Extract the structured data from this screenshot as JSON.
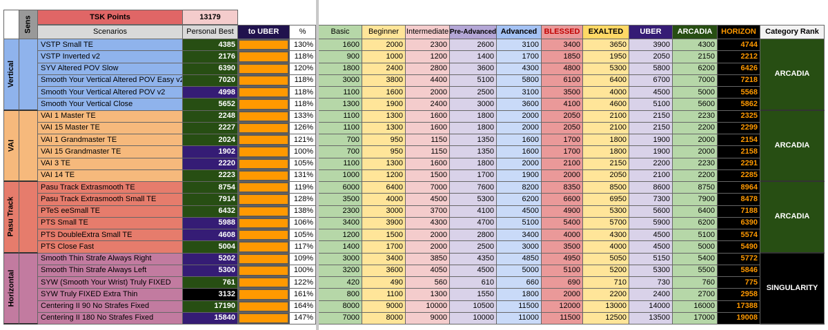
{
  "header": {
    "title": "TSK Points",
    "total": "13179",
    "sens": "Sens"
  },
  "columns": [
    "Scenarios",
    "Personal Best",
    "to UBER",
    "%",
    "Basic",
    "Beginner",
    "Intermediate",
    "Pre-Advanced",
    "Advanced",
    "BLESSED",
    "EXALTED",
    "UBER",
    "ARCADIA",
    "HORIZON",
    "Category Rank"
  ],
  "groups": [
    {
      "name": "Vertical",
      "rank": "ARCADIA",
      "color": "#8fb3ec",
      "rows": [
        {
          "scenario": "VSTP Small TE",
          "pb": 4385,
          "pb_color": "#274e13",
          "pct": {
            "value": 130,
            "label": "130%"
          },
          "thresholds": [
            1600,
            2000,
            2300,
            2600,
            3100,
            3400,
            3650,
            3900,
            4300,
            4744
          ]
        },
        {
          "scenario": "VSTP Inverted v2",
          "pb": 2176,
          "pb_color": "#274e13",
          "pct": {
            "value": 118,
            "label": "118%"
          },
          "thresholds": [
            900,
            1000,
            1200,
            1400,
            1700,
            1850,
            1950,
            2050,
            2150,
            2212
          ]
        },
        {
          "scenario": "SYV Altered POV Slow",
          "pb": 6390,
          "pb_color": "#274e13",
          "pct": {
            "value": 120,
            "label": "120%"
          },
          "thresholds": [
            1800,
            2400,
            2800,
            3600,
            4300,
            4800,
            5300,
            5800,
            6200,
            6426
          ]
        },
        {
          "scenario": "Smooth Your Vertical Altered POV Easy v2",
          "pb": 7020,
          "pb_color": "#274e13",
          "pct": {
            "value": 118,
            "label": "118%"
          },
          "thresholds": [
            3000,
            3800,
            4400,
            5100,
            5800,
            6100,
            6400,
            6700,
            7000,
            7218
          ]
        },
        {
          "scenario": "Smooth Your Vertical Altered POV v2",
          "pb": 4998,
          "pb_color": "#351c75",
          "pct": {
            "value": 118,
            "label": "118%"
          },
          "thresholds": [
            1100,
            1600,
            2000,
            2500,
            3100,
            3500,
            4000,
            4500,
            5000,
            5568
          ]
        },
        {
          "scenario": "Smooth Your Vertical Close",
          "pb": 5652,
          "pb_color": "#274e13",
          "pct": {
            "value": 118,
            "label": "118%"
          },
          "thresholds": [
            1300,
            1900,
            2400,
            3000,
            3600,
            4100,
            4600,
            5100,
            5600,
            5862
          ]
        }
      ]
    },
    {
      "name": "VAI",
      "rank": "ARCADIA",
      "color": "#f6b97c",
      "rows": [
        {
          "scenario": "VAI 1 Master TE",
          "pb": 2248,
          "pb_color": "#274e13",
          "pct": {
            "value": 133,
            "label": "133%"
          },
          "thresholds": [
            1100,
            1300,
            1600,
            1800,
            2000,
            2050,
            2100,
            2150,
            2230,
            2325
          ]
        },
        {
          "scenario": "VAI 15 Master TE",
          "pb": 2227,
          "pb_color": "#274e13",
          "pct": {
            "value": 126,
            "label": "126%"
          },
          "thresholds": [
            1100,
            1300,
            1600,
            1800,
            2000,
            2050,
            2100,
            2150,
            2200,
            2299
          ]
        },
        {
          "scenario": "VAI 1 Grandmaster TE",
          "pb": 2024,
          "pb_color": "#274e13",
          "pct": {
            "value": 121,
            "label": "121%"
          },
          "thresholds": [
            700,
            950,
            1150,
            1350,
            1600,
            1700,
            1800,
            1900,
            2000,
            2154
          ]
        },
        {
          "scenario": "VAI 15 Grandmaster TE",
          "pb": 1902,
          "pb_color": "#351c75",
          "pct": {
            "value": 100,
            "label": "100%"
          },
          "thresholds": [
            700,
            950,
            1150,
            1350,
            1600,
            1700,
            1800,
            1900,
            2000,
            2158
          ]
        },
        {
          "scenario": "VAI 3 TE",
          "pb": 2220,
          "pb_color": "#351c75",
          "pct": {
            "value": 105,
            "label": "105%"
          },
          "thresholds": [
            1100,
            1300,
            1600,
            1800,
            2000,
            2100,
            2150,
            2200,
            2230,
            2291
          ]
        },
        {
          "scenario": "VAI 14 TE",
          "pb": 2223,
          "pb_color": "#274e13",
          "pct": {
            "value": 131,
            "label": "131%"
          },
          "thresholds": [
            1000,
            1200,
            1500,
            1700,
            1900,
            2000,
            2050,
            2100,
            2200,
            2285
          ]
        }
      ]
    },
    {
      "name": "Pasu Track",
      "rank": "ARCADIA",
      "color": "#e67c6c",
      "rows": [
        {
          "scenario": "Pasu Track Extrasmooth TE",
          "pb": 8754,
          "pb_color": "#274e13",
          "pct": {
            "value": 119,
            "label": "119%"
          },
          "thresholds": [
            6000,
            6400,
            7000,
            7600,
            8200,
            8350,
            8500,
            8600,
            8750,
            8964
          ]
        },
        {
          "scenario": "Pasu Track Extrasmooth Small TE",
          "pb": 7914,
          "pb_color": "#274e13",
          "pct": {
            "value": 128,
            "label": "128%"
          },
          "thresholds": [
            3500,
            4000,
            4500,
            5300,
            6200,
            6600,
            6950,
            7300,
            7900,
            8478
          ]
        },
        {
          "scenario": "PTeS eeSmall TE",
          "pb": 6432,
          "pb_color": "#274e13",
          "pct": {
            "value": 138,
            "label": "138%"
          },
          "thresholds": [
            2300,
            3000,
            3700,
            4100,
            4500,
            4900,
            5300,
            5600,
            6400,
            7188
          ]
        },
        {
          "scenario": "PTS Small TE",
          "pb": 5988,
          "pb_color": "#351c75",
          "pct": {
            "value": 106,
            "label": "106%"
          },
          "thresholds": [
            3400,
            3900,
            4300,
            4700,
            5100,
            5400,
            5700,
            5900,
            6200,
            6390
          ]
        },
        {
          "scenario": "PTS DoubleExtra Small TE",
          "pb": 4608,
          "pb_color": "#351c75",
          "pct": {
            "value": 105,
            "label": "105%"
          },
          "thresholds": [
            1200,
            1500,
            2000,
            2800,
            3400,
            4000,
            4300,
            4500,
            5100,
            5574
          ]
        },
        {
          "scenario": "PTS Close Fast",
          "pb": 5004,
          "pb_color": "#274e13",
          "pct": {
            "value": 117,
            "label": "117%"
          },
          "thresholds": [
            1400,
            1700,
            2000,
            2500,
            3000,
            3500,
            4000,
            4500,
            5000,
            5490
          ]
        }
      ]
    },
    {
      "name": "Horizontal",
      "rank": "SINGULARITY",
      "color": "#c27ba0",
      "rows": [
        {
          "scenario": "Smooth Thin Strafe Always Right",
          "pb": 5202,
          "pb_color": "#351c75",
          "pct": {
            "value": 109,
            "label": "109%"
          },
          "thresholds": [
            3000,
            3400,
            3850,
            4350,
            4850,
            4950,
            5050,
            5150,
            5400,
            5772
          ]
        },
        {
          "scenario": "Smooth Thin Strafe Always Left",
          "pb": 5300,
          "pb_color": "#351c75",
          "pct": {
            "value": 100,
            "label": "100%"
          },
          "thresholds": [
            3200,
            3600,
            4050,
            4500,
            5000,
            5100,
            5200,
            5300,
            5500,
            5846
          ]
        },
        {
          "scenario": "SYW (Smooth Your Wrist) Truly FIXED",
          "pb": 761,
          "pb_color": "#274e13",
          "pct": {
            "value": 122,
            "label": "122%"
          },
          "thresholds": [
            420,
            490,
            560,
            610,
            660,
            690,
            710,
            730,
            760,
            775
          ]
        },
        {
          "scenario": "SYW Truly FIXED Extra Thin",
          "pb": 3132,
          "pb_color": "#000000",
          "pct": {
            "value": 161,
            "label": "161%"
          },
          "thresholds": [
            800,
            1100,
            1300,
            1550,
            1800,
            2000,
            2200,
            2400,
            2700,
            2958
          ]
        },
        {
          "scenario": "Centering II 90 No Strafes Fixed",
          "pb": 17190,
          "pb_color": "#274e13",
          "pct": {
            "value": 164,
            "label": "164%"
          },
          "thresholds": [
            8000,
            9000,
            10000,
            10500,
            11500,
            12000,
            13000,
            14000,
            16000,
            17388
          ]
        },
        {
          "scenario": "Centering II 180 No Strafes Fixed",
          "pb": 15840,
          "pb_color": "#351c75",
          "pct": {
            "value": 147,
            "label": "147%"
          },
          "thresholds": [
            7000,
            8000,
            9000,
            10000,
            11000,
            11500,
            12500,
            13500,
            17000,
            19008
          ]
        }
      ]
    }
  ]
}
